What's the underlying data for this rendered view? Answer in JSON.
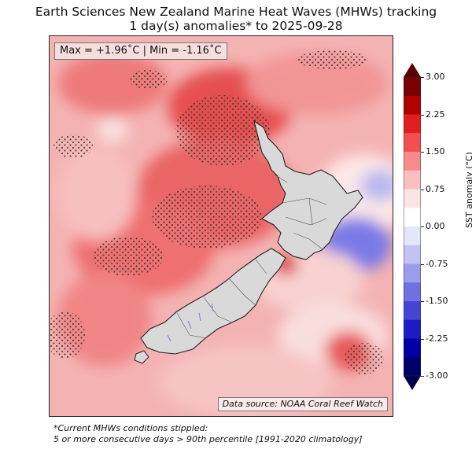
{
  "title": {
    "line1": "Earth Sciences New Zealand Marine Heat Waves (MHWs) tracking",
    "line2": "1 day(s) anomalies* to 2025-09-28"
  },
  "map": {
    "stats_label": "Max = +1.96˚C | Min = -1.16˚C",
    "source_label": "Data source: NOAA Coral Reef Watch",
    "land_color": "#d9d9d9",
    "coast_color": "#222222",
    "stipple_color": "#333333"
  },
  "colorbar": {
    "label": "SST anomaly (°C)",
    "ticks": [
      "3.00",
      "2.25",
      "1.50",
      "0.75",
      "0.00",
      "-0.75",
      "-1.50",
      "-2.25",
      "-3.00"
    ],
    "colors": [
      "#7b0000",
      "#b00000",
      "#e02020",
      "#f05050",
      "#f78a8a",
      "#fbbfbf",
      "#fde4e4",
      "#ffffff",
      "#e6e6fb",
      "#c3c3f3",
      "#9c9cec",
      "#7070e0",
      "#4545d4",
      "#1c1cc4",
      "#0000a4",
      "#00006a"
    ]
  },
  "footnote": {
    "line1": "*Current MHWs conditions stippled:",
    "line2": "5 or more consecutive days > 90th percentile [1991-2020 climatology]"
  }
}
